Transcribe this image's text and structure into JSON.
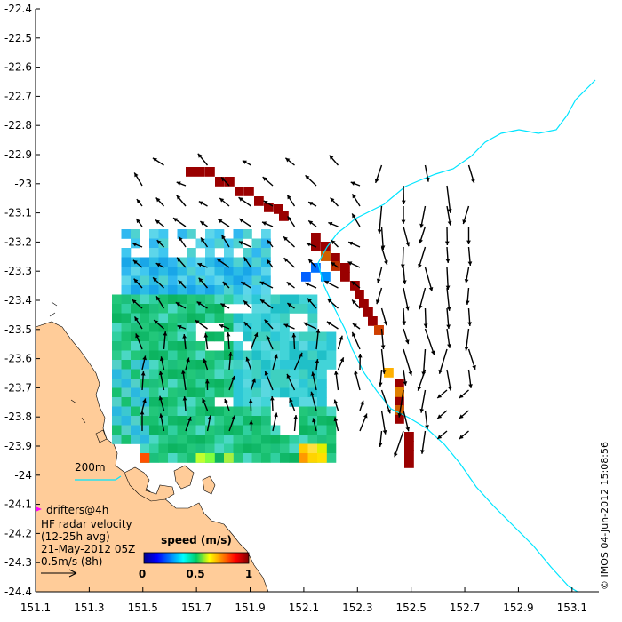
{
  "map": {
    "x_ticks": [
      "151.1",
      "151.3",
      "151.5",
      "151.7",
      "151.9",
      "152.1",
      "152.3",
      "152.5",
      "152.7",
      "152.9",
      "153.1"
    ],
    "y_ticks": [
      "-22.4",
      "-22.5",
      "-22.6",
      "-22.7",
      "-22.8",
      "-22.9",
      "-23",
      "-23.1",
      "-23.2",
      "-23.3",
      "-23.4",
      "-23.5",
      "-23.6",
      "-23.7",
      "-23.8",
      "-23.9",
      "-24",
      "-24.1",
      "-24.2",
      "-24.3",
      "-24.4"
    ],
    "lon_range": [
      151.1,
      153.2
    ],
    "lat_range": [
      -24.4,
      -22.4
    ],
    "contour_label": "200m",
    "colors": {
      "land": "#ffcc99",
      "contour": "#00e5ff",
      "drifters": "#ff00ff"
    }
  },
  "legend": {
    "drifters": "drifters@4h",
    "title": "HF radar velocity",
    "averaging": "(12-25h avg)",
    "date": "21-May-2012 05Z",
    "scale": "0.5m/s (8h)"
  },
  "colorbar": {
    "title": "speed (m/s)",
    "tick_labels": [
      "0",
      "0.5",
      "1"
    ],
    "range": [
      0,
      1
    ]
  },
  "credit": "© IMOS 04-Jun-2012 15:08:56"
}
